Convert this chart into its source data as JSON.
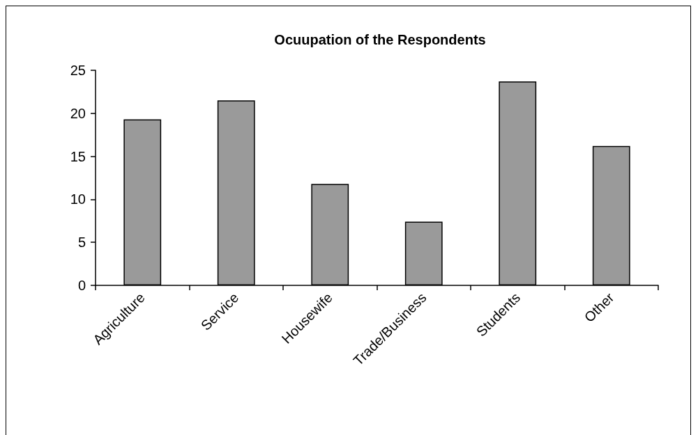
{
  "chart_data": {
    "type": "bar",
    "title": "Ocuupation of the Respondents",
    "categories": [
      "Agriculture",
      "Service",
      "Housewife",
      "Trade/Business",
      "Students",
      "Other"
    ],
    "values": [
      19.3,
      21.5,
      11.8,
      7.4,
      23.7,
      16.2
    ],
    "color": "#9a9a9a",
    "ylim": [
      0,
      25
    ],
    "yticks": [
      0,
      5,
      10,
      15,
      20,
      25
    ],
    "grid": false
  }
}
